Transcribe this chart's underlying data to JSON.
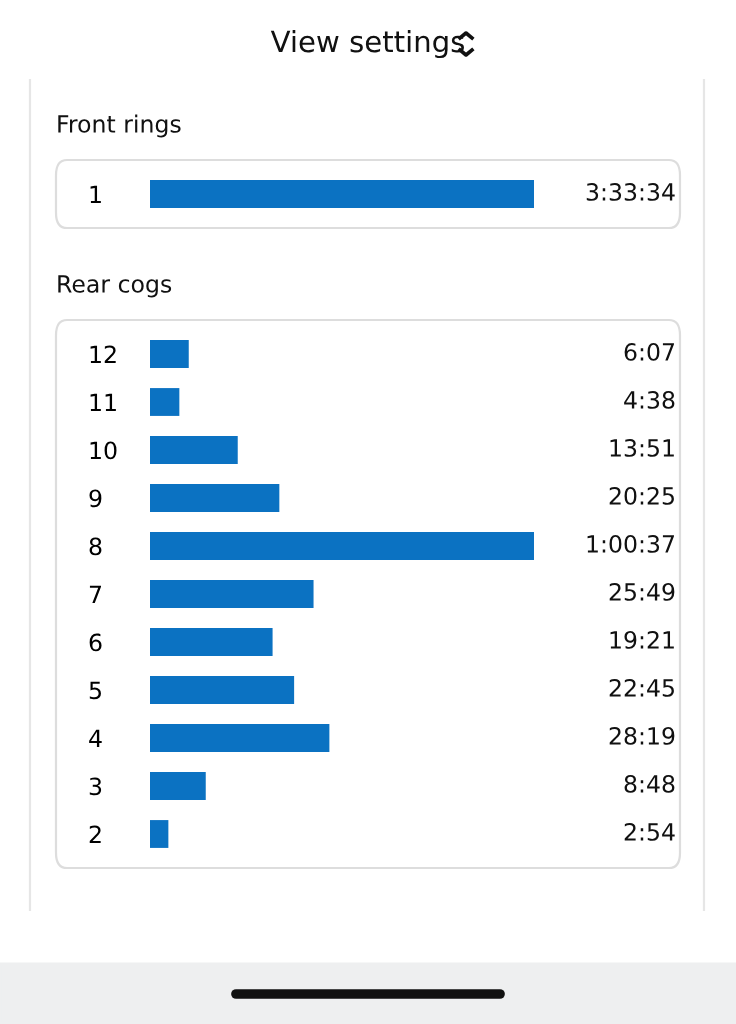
{
  "chart_data": [
    {
      "type": "bar",
      "orientation": "horizontal",
      "title": "Front rings",
      "annotations": [
        "View settings"
      ],
      "categories": [
        "1"
      ],
      "values": [
        12814
      ],
      "value_labels": [
        "3:33:34"
      ],
      "color": "#0b72c2"
    },
    {
      "type": "bar",
      "orientation": "horizontal",
      "title": "Rear cogs",
      "categories": [
        "12",
        "11",
        "10",
        "9",
        "8",
        "7",
        "6",
        "5",
        "4",
        "3",
        "2"
      ],
      "values": [
        367,
        278,
        831,
        1225,
        3637,
        1549,
        1161,
        1365,
        1699,
        528,
        174
      ],
      "value_labels": [
        "6:07",
        "4:38",
        "13:51",
        "20:25",
        "1:00:37",
        "25:49",
        "19:21",
        "22:45",
        "28:19",
        "8:48",
        "2:54"
      ],
      "color": "#0b72c2"
    }
  ]
}
